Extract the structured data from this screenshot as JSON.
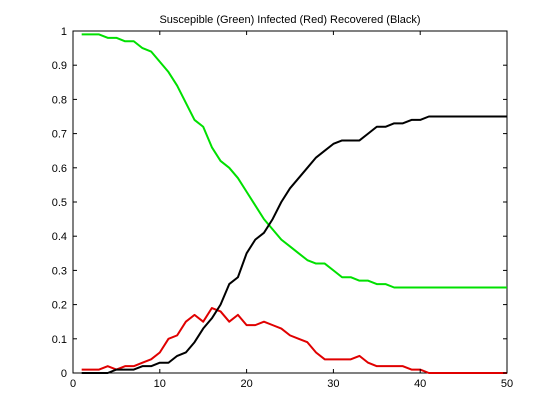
{
  "chart_data": {
    "type": "line",
    "title": "Suscepible (Green) Infected (Red) Recovered (Black)",
    "xlabel": "",
    "ylabel": "",
    "xlim": [
      0,
      50
    ],
    "ylim": [
      0,
      1
    ],
    "xticks": [
      0,
      10,
      20,
      30,
      40,
      50
    ],
    "yticks": [
      0,
      0.1,
      0.2,
      0.3,
      0.4,
      0.5,
      0.6,
      0.7,
      0.8,
      0.9,
      1
    ],
    "grid": false,
    "legend": "none",
    "series": [
      {
        "color": "#00e000",
        "x": [
          1,
          2,
          3,
          4,
          5,
          6,
          7,
          8,
          9,
          10,
          11,
          12,
          13,
          14,
          15,
          16,
          17,
          18,
          19,
          20,
          21,
          22,
          23,
          24,
          25,
          26,
          27,
          28,
          29,
          30,
          31,
          32,
          33,
          34,
          35,
          36,
          37,
          38,
          39,
          40,
          41,
          42,
          43,
          44,
          45,
          46,
          47,
          48,
          49,
          50
        ],
        "values": [
          0.99,
          0.99,
          0.99,
          0.98,
          0.98,
          0.97,
          0.97,
          0.95,
          0.94,
          0.91,
          0.88,
          0.84,
          0.79,
          0.74,
          0.72,
          0.66,
          0.62,
          0.6,
          0.57,
          0.53,
          0.49,
          0.45,
          0.42,
          0.39,
          0.37,
          0.35,
          0.33,
          0.32,
          0.32,
          0.3,
          0.28,
          0.28,
          0.27,
          0.27,
          0.26,
          0.26,
          0.25,
          0.25,
          0.25,
          0.25,
          0.25,
          0.25,
          0.25,
          0.25,
          0.25,
          0.25,
          0.25,
          0.25,
          0.25,
          0.25
        ]
      },
      {
        "color": "#e00000",
        "x": [
          1,
          2,
          3,
          4,
          5,
          6,
          7,
          8,
          9,
          10,
          11,
          12,
          13,
          14,
          15,
          16,
          17,
          18,
          19,
          20,
          21,
          22,
          23,
          24,
          25,
          26,
          27,
          28,
          29,
          30,
          31,
          32,
          33,
          34,
          35,
          36,
          37,
          38,
          39,
          40,
          41,
          42,
          43,
          44,
          45,
          46,
          47,
          48,
          49,
          50
        ],
        "values": [
          0.01,
          0.01,
          0.01,
          0.02,
          0.01,
          0.02,
          0.02,
          0.03,
          0.04,
          0.06,
          0.1,
          0.11,
          0.15,
          0.17,
          0.15,
          0.19,
          0.18,
          0.15,
          0.17,
          0.14,
          0.14,
          0.15,
          0.14,
          0.13,
          0.11,
          0.1,
          0.09,
          0.06,
          0.04,
          0.04,
          0.04,
          0.04,
          0.05,
          0.03,
          0.02,
          0.02,
          0.02,
          0.02,
          0.01,
          0.01,
          0.0,
          0.0,
          0.0,
          0.0,
          0.0,
          0.0,
          0.0,
          0.0,
          0.0,
          0.0
        ]
      },
      {
        "color": "#000000",
        "x": [
          1,
          2,
          3,
          4,
          5,
          6,
          7,
          8,
          9,
          10,
          11,
          12,
          13,
          14,
          15,
          16,
          17,
          18,
          19,
          20,
          21,
          22,
          23,
          24,
          25,
          26,
          27,
          28,
          29,
          30,
          31,
          32,
          33,
          34,
          35,
          36,
          37,
          38,
          39,
          40,
          41,
          42,
          43,
          44,
          45,
          46,
          47,
          48,
          49,
          50
        ],
        "values": [
          0.0,
          0.0,
          0.0,
          0.0,
          0.01,
          0.01,
          0.01,
          0.02,
          0.02,
          0.03,
          0.03,
          0.05,
          0.06,
          0.09,
          0.13,
          0.16,
          0.2,
          0.26,
          0.28,
          0.35,
          0.39,
          0.41,
          0.45,
          0.5,
          0.54,
          0.57,
          0.6,
          0.63,
          0.65,
          0.67,
          0.68,
          0.68,
          0.68,
          0.7,
          0.72,
          0.72,
          0.73,
          0.73,
          0.74,
          0.74,
          0.75,
          0.75,
          0.75,
          0.75,
          0.75,
          0.75,
          0.75,
          0.75,
          0.75,
          0.75
        ]
      }
    ]
  }
}
